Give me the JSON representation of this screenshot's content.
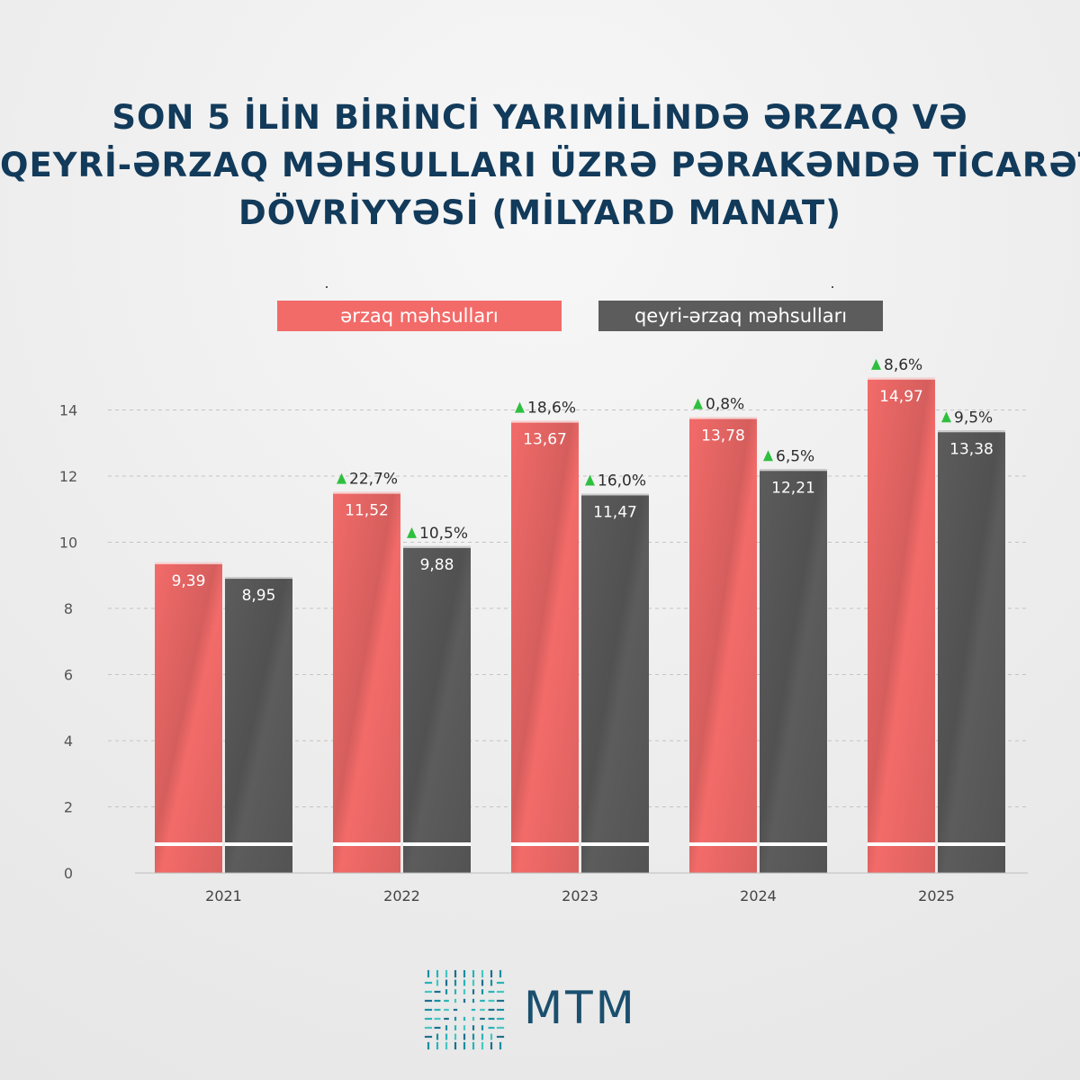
{
  "title_lines": [
    "SON 5 İLİN BİRİNCİ YARIMİLİNDƏ ƏRZAQ VƏ",
    "QEYRİ-ƏRZAQ MƏHSULLARI ÜZRƏ PƏRAKƏNDƏ TİCARƏT",
    "DÖVRİYYƏSİ (MİLYARD MANAT)"
  ],
  "brand": {
    "name": "MTM"
  },
  "colors": {
    "food": "#f26b69",
    "nonfood": "#5c5c5c",
    "growth_arrow": "#2fbf3f",
    "title": "#123a5a"
  },
  "chart_data": {
    "type": "bar",
    "categories": [
      "2021",
      "2022",
      "2023",
      "2024",
      "2025"
    ],
    "series": [
      {
        "name": "ərzaq məhsulları",
        "values": [
          9.39,
          11.52,
          13.67,
          13.78,
          14.97
        ],
        "value_labels": [
          "9,39",
          "11,52",
          "13,67",
          "13,78",
          "14,97"
        ],
        "growth_labels": [
          "",
          "22,7%",
          "18,6%",
          "0,8%",
          "8,6%"
        ]
      },
      {
        "name": "qeyri-ərzaq məhsulları",
        "values": [
          8.95,
          9.88,
          11.47,
          12.21,
          13.38
        ],
        "value_labels": [
          "8,95",
          "9,88",
          "11,47",
          "12,21",
          "13,38"
        ],
        "growth_labels": [
          "",
          "10,5%",
          "16,0%",
          "6,5%",
          "9,5%"
        ]
      }
    ],
    "yticks": [
      "0",
      "2",
      "4",
      "6",
      "8",
      "10",
      "12",
      "14"
    ],
    "ylim": [
      0,
      15
    ],
    "grid": true,
    "legend": "top-center"
  }
}
